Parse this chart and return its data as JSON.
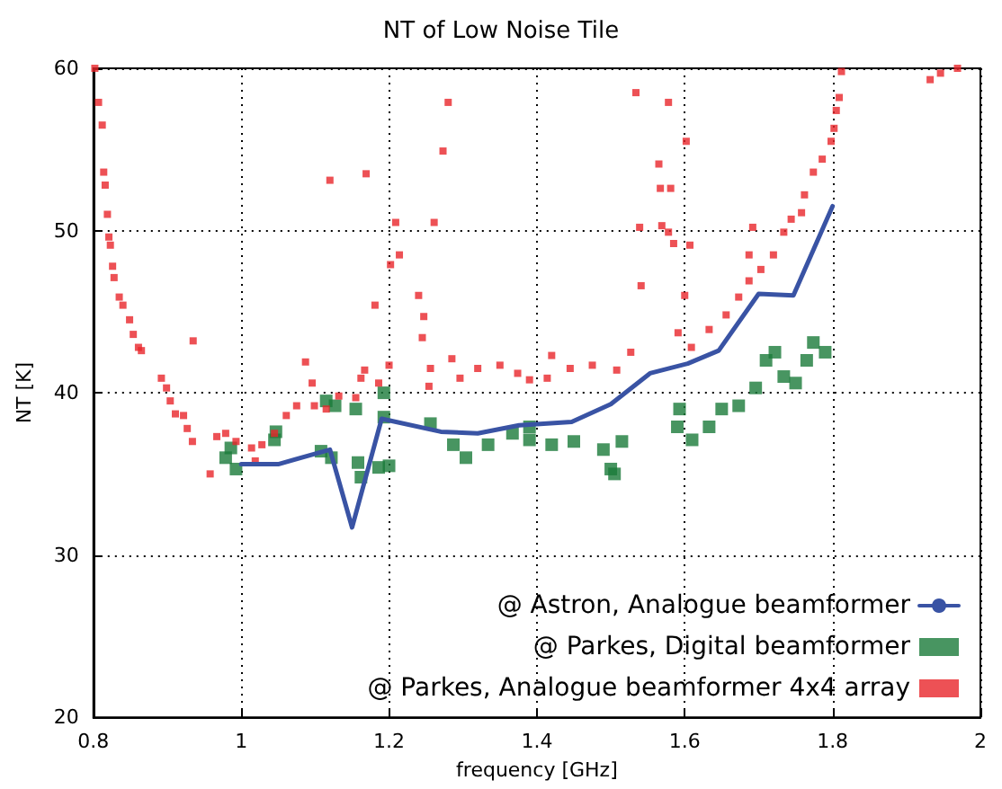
{
  "chart_data": {
    "type": "scatter",
    "title": "NT of Low Noise Tile",
    "xlabel": "frequency [GHz]",
    "ylabel": "NT [K]",
    "xlim": [
      0.8,
      2
    ],
    "xticks": [
      0.8,
      1,
      1.2,
      1.4,
      1.6,
      1.8,
      2
    ],
    "ylim": [
      20,
      60
    ],
    "yticks": [
      20,
      30,
      40,
      50,
      60
    ],
    "grid": true,
    "legend": "bottom right",
    "marker": "square",
    "series": [
      {
        "name": "@ Astron, Analogue beamformer",
        "type": "line",
        "marker": "none",
        "color": "#3953a4",
        "x": [
          1.0,
          1.05,
          1.12,
          1.15,
          1.19,
          1.27,
          1.32,
          1.376,
          1.447,
          1.5,
          1.553,
          1.604,
          1.646,
          1.7,
          1.747,
          1.8
        ],
        "values": [
          35.6,
          35.6,
          36.5,
          31.7,
          38.4,
          37.6,
          37.5,
          38.0,
          38.2,
          39.3,
          41.2,
          41.8,
          42.6,
          46.1,
          46.0,
          51.5
        ]
      },
      {
        "name": "@ Parkes, Digital beamformer",
        "color": "#1a7a3a",
        "x": [
          0.979,
          0.993,
          0.986,
          1.045,
          1.047,
          1.115,
          1.127,
          1.155,
          1.193,
          1.193,
          1.108,
          1.122,
          1.158,
          1.162,
          1.186,
          1.2,
          1.256,
          1.287,
          1.304,
          1.334,
          1.367,
          1.39,
          1.39,
          1.42,
          1.45,
          1.49,
          1.515,
          1.5,
          1.505,
          1.593,
          1.59,
          1.61,
          1.633,
          1.65,
          1.673,
          1.696,
          1.71,
          1.722,
          1.734,
          1.75,
          1.765,
          1.774,
          1.79
        ],
        "values": [
          36.0,
          35.3,
          36.6,
          37.1,
          37.6,
          39.5,
          39.2,
          39.0,
          40.0,
          38.5,
          36.4,
          36.0,
          35.7,
          34.8,
          35.4,
          35.5,
          38.1,
          36.8,
          36.0,
          36.8,
          37.5,
          37.9,
          37.1,
          36.8,
          37.0,
          36.5,
          37.0,
          35.3,
          35.0,
          39.0,
          37.9,
          37.1,
          37.9,
          39.0,
          39.2,
          40.3,
          42.0,
          42.5,
          41.0,
          40.6,
          42.0,
          43.1,
          42.5
        ]
      },
      {
        "name": "@ Parkes, Analogue beamformer 4x4 array",
        "color": "#e8262a",
        "x": [
          0.802,
          0.807,
          0.812,
          0.814,
          0.816,
          0.819,
          0.821,
          0.823,
          0.826,
          0.828,
          0.835,
          0.84,
          0.849,
          0.854,
          0.861,
          0.865,
          0.935,
          0.892,
          0.899,
          0.904,
          0.911,
          0.922,
          0.927,
          0.934,
          0.958,
          0.967,
          0.979,
          0.993,
          1.014,
          1.028,
          1.019,
          1.045,
          1.061,
          1.075,
          1.087,
          1.096,
          1.099,
          1.115,
          1.132,
          1.155,
          1.162,
          1.167,
          1.181,
          1.186,
          1.2,
          1.202,
          1.209,
          1.214,
          1.12,
          1.169,
          1.261,
          1.273,
          1.28,
          1.24,
          1.247,
          1.245,
          1.256,
          1.254,
          1.285,
          1.296,
          1.32,
          1.35,
          1.374,
          1.39,
          1.414,
          1.42,
          1.445,
          1.475,
          1.508,
          1.527,
          1.539,
          1.534,
          1.578,
          1.602,
          1.565,
          1.567,
          1.581,
          1.569,
          1.578,
          1.585,
          1.607,
          1.541,
          1.6,
          1.591,
          1.609,
          1.633,
          1.656,
          1.673,
          1.687,
          1.687,
          1.692,
          1.703,
          1.72,
          1.734,
          1.744,
          1.758,
          1.762,
          1.774,
          1.786,
          1.798,
          1.802,
          1.805,
          1.809,
          1.812,
          1.932,
          1.946,
          1.969
        ],
        "values": [
          60.0,
          57.9,
          56.5,
          53.6,
          52.8,
          51.0,
          49.6,
          49.1,
          47.8,
          47.1,
          45.9,
          45.4,
          44.5,
          43.6,
          42.8,
          42.6,
          43.2,
          40.9,
          40.3,
          39.5,
          38.7,
          38.6,
          37.8,
          37.0,
          35.0,
          37.3,
          37.5,
          37.0,
          36.6,
          36.8,
          35.8,
          37.5,
          38.6,
          39.2,
          41.9,
          40.6,
          39.2,
          39.0,
          39.8,
          39.7,
          40.9,
          41.4,
          45.4,
          40.6,
          41.7,
          47.9,
          50.5,
          48.5,
          53.1,
          53.5,
          50.5,
          54.9,
          57.9,
          46.0,
          44.7,
          43.4,
          41.5,
          40.4,
          42.1,
          40.9,
          41.5,
          41.7,
          41.2,
          40.8,
          40.9,
          42.3,
          41.5,
          41.7,
          41.4,
          42.5,
          50.2,
          58.5,
          57.9,
          55.5,
          54.1,
          52.6,
          52.6,
          50.3,
          49.9,
          49.2,
          49.1,
          46.6,
          46.0,
          43.7,
          42.8,
          43.9,
          44.8,
          45.9,
          46.9,
          48.5,
          50.2,
          47.6,
          48.5,
          49.9,
          50.7,
          51.1,
          52.2,
          53.6,
          54.4,
          55.5,
          56.3,
          57.4,
          58.2,
          59.8,
          59.3,
          59.7,
          60.0
        ]
      }
    ]
  }
}
